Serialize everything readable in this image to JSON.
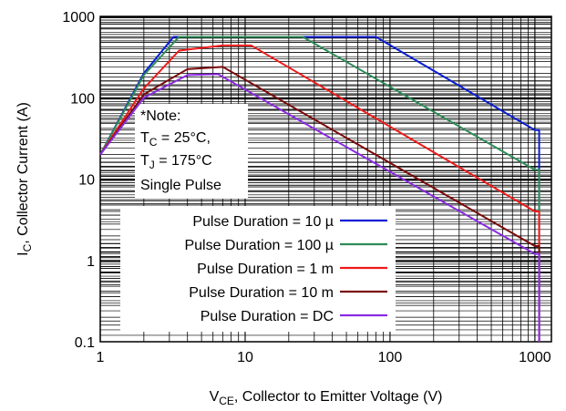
{
  "chart_data": {
    "type": "line",
    "x_scale": "log",
    "y_scale": "log",
    "xlim": [
      1,
      1300
    ],
    "ylim": [
      0.1,
      1000
    ],
    "grid": true,
    "x_ticks": [
      {
        "value": 1,
        "label": "1"
      },
      {
        "value": 10,
        "label": "10"
      },
      {
        "value": 100,
        "label": "100"
      },
      {
        "value": 1000,
        "label": "1000"
      }
    ],
    "y_ticks": [
      {
        "value": 0.1,
        "label": "0.1"
      },
      {
        "value": 1,
        "label": "1"
      },
      {
        "value": 10,
        "label": "10"
      },
      {
        "value": 100,
        "label": "100"
      },
      {
        "value": 1000,
        "label": "1000"
      }
    ],
    "xlabel": {
      "main": "V",
      "sub": "CE",
      "rest": ", Collector to Emitter Voltage (V)"
    },
    "ylabel": {
      "main": "I",
      "sub": "C",
      "rest": ", Collector Current (A)"
    },
    "note": {
      "line1": "*Note:",
      "line2": {
        "main": "T",
        "sub": "C",
        "rest": " = 25°C,"
      },
      "line3": {
        "main": "T",
        "sub": "J",
        "rest": " = 175°C"
      },
      "line4": "Single Pulse"
    },
    "legend_position": "bottom-right",
    "series": [
      {
        "name": "Pulse Duration = 10 µ",
        "color": "#0a1ed2",
        "points": [
          [
            1,
            20
          ],
          [
            2,
            200
          ],
          [
            3.2,
            560
          ],
          [
            80,
            560
          ],
          [
            1000,
            40
          ],
          [
            1070,
            40
          ],
          [
            1070,
            0.1
          ]
        ]
      },
      {
        "name": "Pulse Duration = 100 µ",
        "color": "#2e8b57",
        "points": [
          [
            1,
            20
          ],
          [
            2,
            190
          ],
          [
            3.5,
            560
          ],
          [
            25,
            560
          ],
          [
            1000,
            13
          ],
          [
            1070,
            13
          ],
          [
            1070,
            0.1
          ]
        ]
      },
      {
        "name": "Pulse Duration = 1 m",
        "color": "#ef1a1a",
        "points": [
          [
            1,
            20
          ],
          [
            2,
            130
          ],
          [
            3.5,
            380
          ],
          [
            7,
            440
          ],
          [
            11,
            440
          ],
          [
            1000,
            4
          ],
          [
            1070,
            4
          ],
          [
            1070,
            0.1
          ]
        ]
      },
      {
        "name": "Pulse Duration = 10 m",
        "color": "#7a0a0a",
        "points": [
          [
            1,
            20
          ],
          [
            2,
            110
          ],
          [
            4,
            225
          ],
          [
            7,
            240
          ],
          [
            1000,
            1.5
          ],
          [
            1070,
            1.5
          ],
          [
            1070,
            0.1
          ]
        ]
      },
      {
        "name": "Pulse Duration = DC",
        "color": "#8a2be2",
        "points": [
          [
            1,
            20
          ],
          [
            2,
            100
          ],
          [
            4,
            190
          ],
          [
            6.5,
            195
          ],
          [
            1000,
            1.2
          ],
          [
            1070,
            1.2
          ],
          [
            1070,
            0.1
          ]
        ]
      }
    ]
  }
}
